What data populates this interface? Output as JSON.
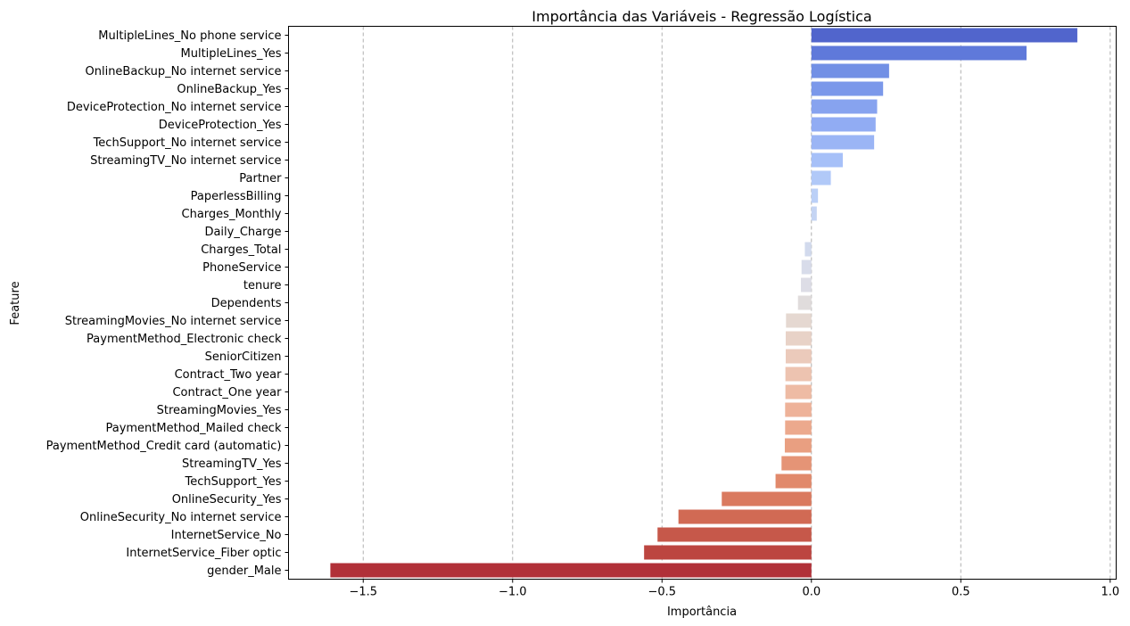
{
  "chart_data": {
    "type": "bar",
    "orientation": "horizontal",
    "title": "Importância das Variáveis - Regressão Logística",
    "xlabel": "Importância",
    "ylabel": "Feature",
    "xlim": [
      -1.75,
      1.02
    ],
    "xticks": [
      -1.5,
      -1.0,
      -0.5,
      0.0,
      0.5,
      1.0
    ],
    "xtick_labels": [
      "−1.5",
      "−1.0",
      "−0.5",
      "0.0",
      "0.5",
      "1.0"
    ],
    "grid": "vertical dashed",
    "palette": "coolwarm",
    "categories": [
      "MultipleLines_No phone service",
      "MultipleLines_Yes",
      "OnlineBackup_No internet service",
      "OnlineBackup_Yes",
      "DeviceProtection_No internet service",
      "DeviceProtection_Yes",
      "TechSupport_No internet service",
      "StreamingTV_No internet service",
      "Partner",
      "PaperlessBilling",
      "Charges_Monthly",
      "Daily_Charge",
      "Charges_Total",
      "PhoneService",
      "tenure",
      "Dependents",
      "StreamingMovies_No internet service",
      "PaymentMethod_Electronic check",
      "SeniorCitizen",
      "Contract_Two year",
      "Contract_One year",
      "StreamingMovies_Yes",
      "PaymentMethod_Mailed check",
      "PaymentMethod_Credit card (automatic)",
      "StreamingTV_Yes",
      "TechSupport_Yes",
      "OnlineSecurity_Yes",
      "OnlineSecurity_No internet service",
      "InternetService_No",
      "InternetService_Fiber optic",
      "gender_Male"
    ],
    "values": [
      0.89,
      0.72,
      0.26,
      0.24,
      0.22,
      0.215,
      0.21,
      0.105,
      0.065,
      0.022,
      0.018,
      0.0,
      -0.022,
      -0.033,
      -0.035,
      -0.045,
      -0.085,
      -0.086,
      -0.086,
      -0.087,
      -0.087,
      -0.088,
      -0.088,
      -0.089,
      -0.1,
      -0.12,
      -0.3,
      -0.445,
      -0.515,
      -0.56,
      -1.61
    ],
    "colors": [
      "#5165cc",
      "#5f79da",
      "#7290e5",
      "#7b98ea",
      "#87a3ef",
      "#91acf3",
      "#9bb5f5",
      "#a6c0f8",
      "#b1c9f8",
      "#bbd0f7",
      "#c4d4f3",
      "#ccd8f0",
      "#d2daed",
      "#d8dcea",
      "#dddde6",
      "#e0dcdc",
      "#e5d8d1",
      "#e8d2c7",
      "#ebcabb",
      "#edc3b0",
      "#eebba4",
      "#eeb299",
      "#eca98d",
      "#e99f81",
      "#e59476",
      "#e1896b",
      "#da7a5f",
      "#d16a54",
      "#c6584a",
      "#bc4540",
      "#b13038"
    ]
  }
}
